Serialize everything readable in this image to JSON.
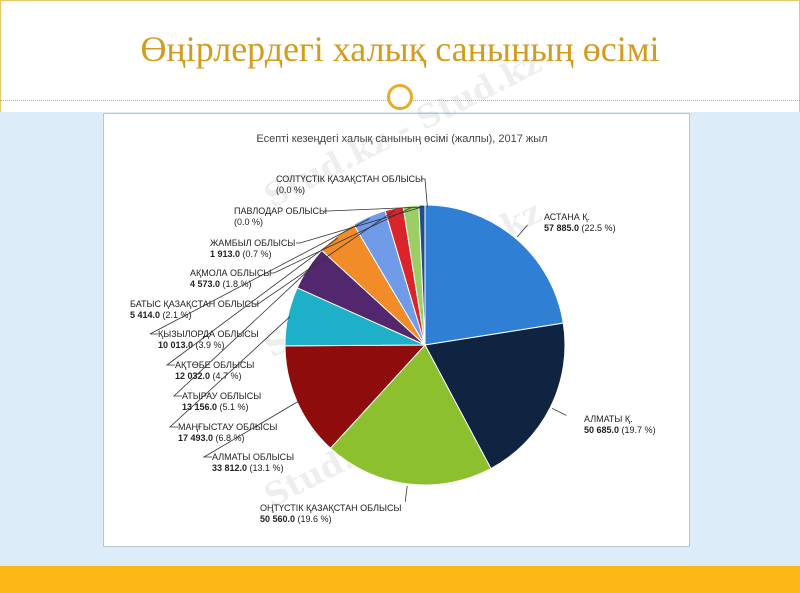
{
  "slide": {
    "title": "Өңірлердегі халық санының өсімі",
    "watermark": "Stud.kz - Stud.kz"
  },
  "colors": {
    "title": "#d59b1c",
    "bottom_bar": "#fbb715",
    "panel": "#dcecf9"
  },
  "chart_data": {
    "type": "pie",
    "title": "Есепті кезеңдегі халық санының өсімі (жалпы), 2017 жыл",
    "start_angle_deg": 0,
    "direction": "clockwise",
    "slices": [
      {
        "name": "АСТАНА Қ.",
        "value_label": "57 885.0",
        "pct_label": "(22.5 %)",
        "value": 57885.0,
        "pct": 22.5,
        "color": "#2f80d4"
      },
      {
        "name": "АЛМАТЫ Қ.",
        "value_label": "50 685.0",
        "pct_label": "(19.7 %)",
        "value": 50685.0,
        "pct": 19.7,
        "color": "#0f2440"
      },
      {
        "name": "ОҢТҮСТІК ҚАЗАҚСТАН ОБЛЫСЫ",
        "value_label": "50 560.0",
        "pct_label": "(19.6 %)",
        "value": 50560.0,
        "pct": 19.6,
        "color": "#8cc02e"
      },
      {
        "name": "АЛМАТЫ ОБЛЫСЫ",
        "value_label": "33 812.0",
        "pct_label": "(13.1 %)",
        "value": 33812.0,
        "pct": 13.1,
        "color": "#8e0c0c"
      },
      {
        "name": "МАҢҒЫСТАУ ОБЛЫСЫ",
        "value_label": "17 493.0",
        "pct_label": "(6.8 %)",
        "value": 17493.0,
        "pct": 6.8,
        "color": "#1fb0c9"
      },
      {
        "name": "АТЫРАУ ОБЛЫСЫ",
        "value_label": "13 156.0",
        "pct_label": "(5.1 %)",
        "value": 13156.0,
        "pct": 5.1,
        "color": "#52276e"
      },
      {
        "name": "АҚТӨБЕ ОБЛЫСЫ",
        "value_label": "12 032.0",
        "pct_label": "(4.7 %)",
        "value": 12032.0,
        "pct": 4.7,
        "color": "#f28c28"
      },
      {
        "name": "ҚЫЗЫЛОРДА ОБЛЫСЫ",
        "value_label": "10 013.0",
        "pct_label": "(3.9 %)",
        "value": 10013.0,
        "pct": 3.9,
        "color": "#6f9be8"
      },
      {
        "name": "БАТЫС ҚАЗАҚСТАН ОБЛЫСЫ",
        "value_label": "5 414.0",
        "pct_label": "(2.1 %)",
        "value": 5414.0,
        "pct": 2.1,
        "color": "#d8242a"
      },
      {
        "name": "АҚМОЛА ОБЛЫСЫ",
        "value_label": "4 573.0",
        "pct_label": "(1.8 %)",
        "value": 4573.0,
        "pct": 1.8,
        "color": "#9bcf63"
      },
      {
        "name": "ЖАМБЫЛ ОБЛЫСЫ",
        "value_label": "1 913.0",
        "pct_label": "(0.7 %)",
        "value": 1913.0,
        "pct": 0.7,
        "color": "#1f4f8a"
      },
      {
        "name": "ПАВЛОДАР ОБЛЫСЫ",
        "value_label": "",
        "pct_label": "(0.0 %)",
        "value": 0,
        "pct": 0.0,
        "color": "#999999"
      },
      {
        "name": "СОЛТҮСТІК ҚАЗАҚСТАН ОБЛЫСЫ",
        "value_label": "",
        "pct_label": "(0.0 %)",
        "value": 0,
        "pct": 0.0,
        "color": "#999999"
      }
    ]
  }
}
